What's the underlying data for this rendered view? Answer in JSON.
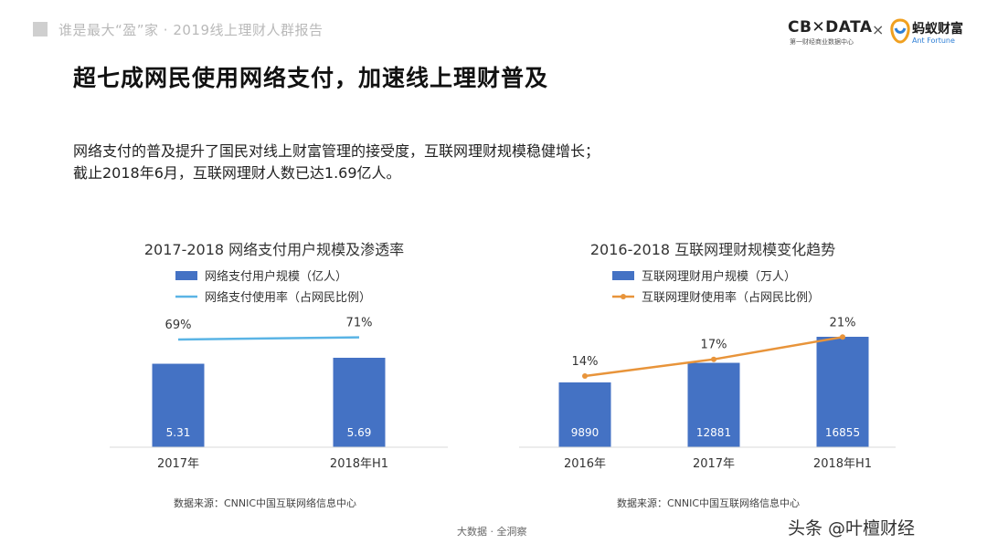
{
  "header": {
    "report_title": "谁是最大“盈”家 · 2019线上理财人群报告",
    "brand_cbn": "CB✕DATA",
    "brand_cbn_sub": "第一财经商业数据中心",
    "brand_times": "×",
    "brand_ant_cn": "蚂蚁财富",
    "brand_ant_en": "Ant Fortune"
  },
  "main": {
    "title": "超七成网民使用网络支付，加速线上理财普及",
    "desc_line1": "网络支付的普及提升了国民对线上财富管理的接受度，互联网理财规模稳健增长；",
    "desc_line2": "截止2018年6月，互联网理财人数已达1.69亿人。"
  },
  "colors": {
    "bar": "#4472c4",
    "line_left": "#5ab4e5",
    "line_right": "#e8943a",
    "axis": "#d9d9d9"
  },
  "chart_data": [
    {
      "type": "bar",
      "title": "2017-2018 网络支付用户规模及渗透率",
      "categories": [
        "2017年",
        "2018年H1"
      ],
      "series": [
        {
          "name": "网络支付用户规模（亿人）",
          "type": "bar",
          "values": [
            5.31,
            5.69
          ],
          "labels": [
            "5.31",
            "5.69"
          ]
        },
        {
          "name": "网络支付使用率（占网民比例）",
          "type": "line",
          "values": [
            69,
            71
          ],
          "labels": [
            "69%",
            "71%"
          ]
        }
      ],
      "source": "数据来源：CNNIC中国互联网络信息中心"
    },
    {
      "type": "bar",
      "title": "2016-2018 互联网理财规模变化趋势",
      "categories": [
        "2016年",
        "2017年",
        "2018年H1"
      ],
      "series": [
        {
          "name": "互联网理财用户规模（万人）",
          "type": "bar",
          "values": [
            9890,
            12881,
            16855
          ],
          "labels": [
            "9890",
            "12881",
            "16855"
          ]
        },
        {
          "name": "互联网理财使用率（占网民比例）",
          "type": "line",
          "values": [
            14,
            17,
            21
          ],
          "labels": [
            "14%",
            "17%",
            "21%"
          ]
        }
      ],
      "source": "数据来源：CNNIC中国互联网络信息中心"
    }
  ],
  "footer": {
    "center": "大数据 · 全洞察",
    "watermark": "头条 @叶檀财经"
  }
}
